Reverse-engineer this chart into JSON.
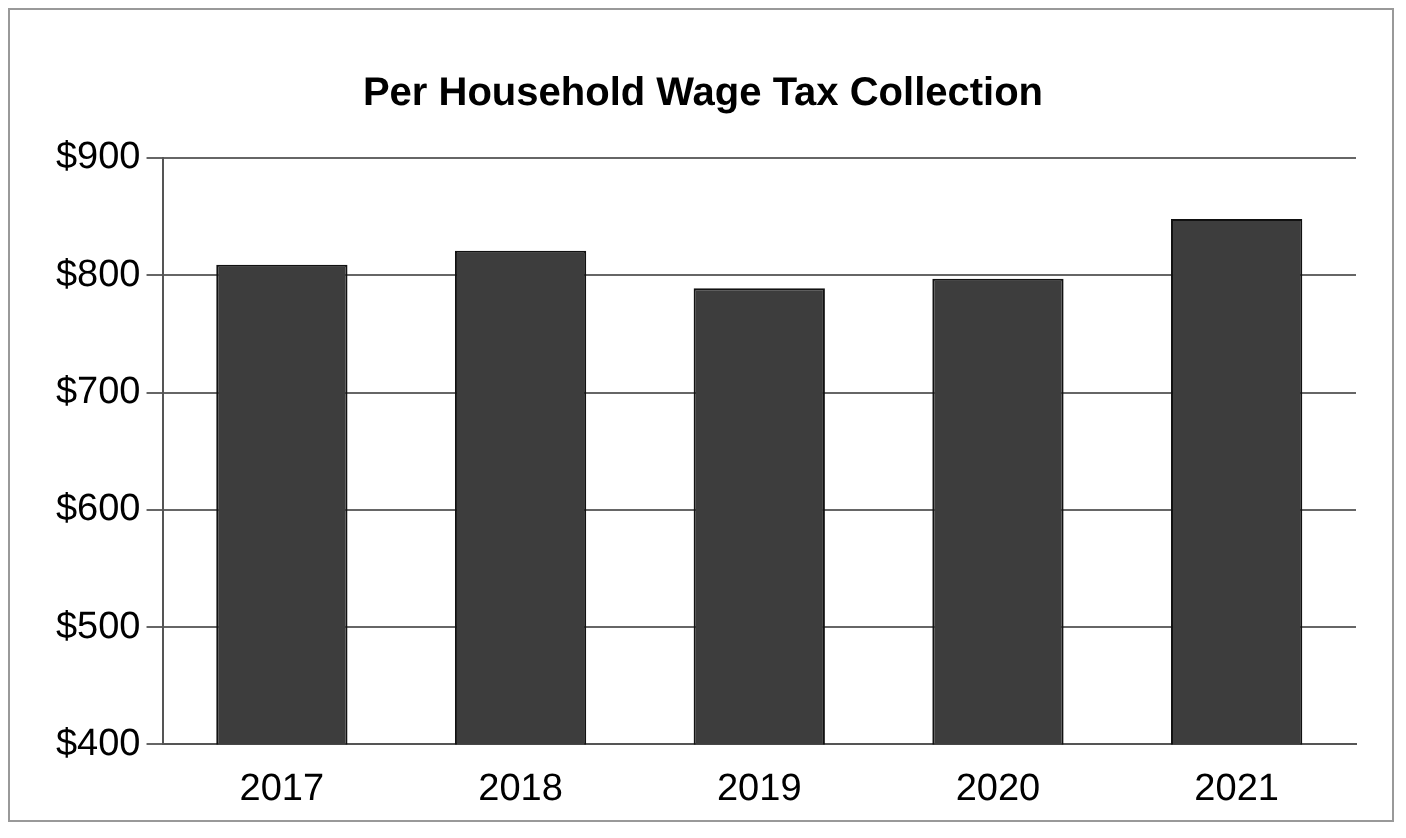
{
  "chart_data": {
    "type": "bar",
    "title": "Per Household Wage Tax Collection",
    "categories": [
      "2017",
      "2018",
      "2019",
      "2020",
      "2021"
    ],
    "values": [
      809,
      821,
      789,
      797,
      848
    ],
    "color": "#3d3d3d",
    "ylim": [
      400,
      900
    ],
    "yticks": [
      {
        "value": 400,
        "label": "$400"
      },
      {
        "value": 500,
        "label": "$500"
      },
      {
        "value": 600,
        "label": "$600"
      },
      {
        "value": 700,
        "label": "$700"
      },
      {
        "value": 800,
        "label": "$800"
      },
      {
        "value": 900,
        "label": "$900"
      }
    ],
    "grid": "y",
    "legend": false
  }
}
